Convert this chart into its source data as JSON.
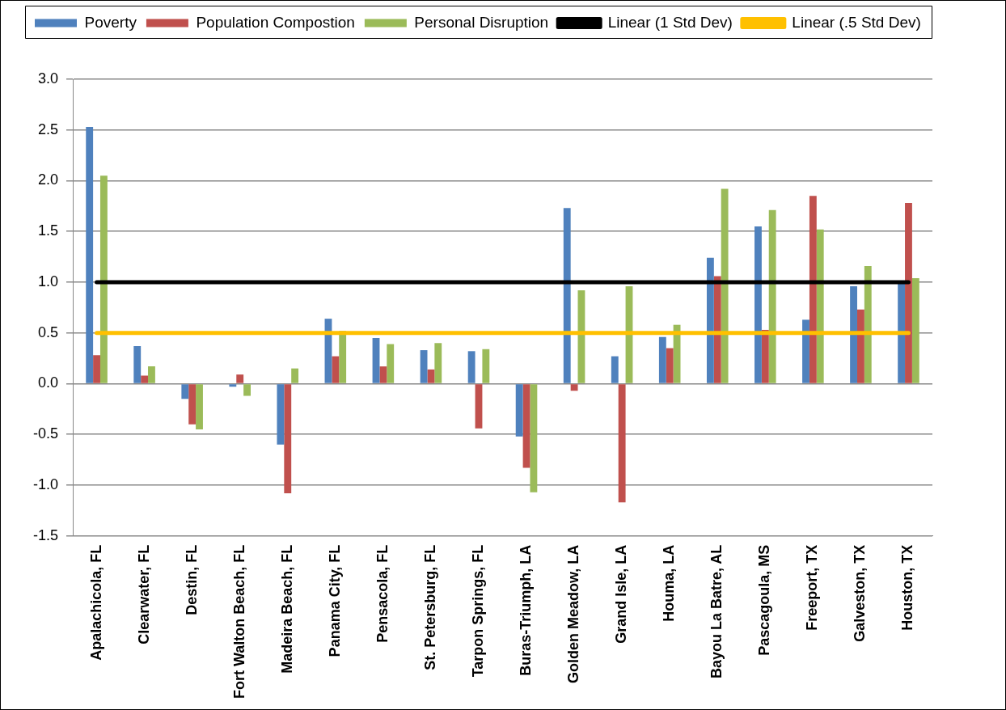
{
  "chart_data": {
    "type": "bar",
    "categories": [
      "Apalachicola, FL",
      "Clearwater, FL",
      "Destin, FL",
      "Fort Walton Beach, FL",
      "Madeira Beach, FL",
      "Panama City, FL",
      "Pensacola, FL",
      "St. Petersburg, FL",
      "Tarpon Springs, FL",
      "Buras-Triumph, LA",
      "Golden Meadow, LA",
      "Grand Isle, LA",
      "Houma, LA",
      "Bayou La Batre, AL",
      "Pascagoula, MS",
      "Freeport, TX",
      "Galveston, TX",
      "Houston, TX"
    ],
    "series": [
      {
        "name": "Poverty",
        "color": "#4f81bd",
        "values": [
          2.53,
          0.37,
          -0.15,
          -0.03,
          -0.6,
          0.64,
          0.45,
          0.33,
          0.32,
          -0.52,
          1.73,
          0.27,
          0.46,
          1.24,
          1.55,
          0.63,
          0.96,
          1.0
        ]
      },
      {
        "name": "Population Compostion",
        "color": "#c0504d",
        "values": [
          0.28,
          0.08,
          -0.4,
          0.09,
          -1.08,
          0.27,
          0.17,
          0.14,
          -0.44,
          -0.83,
          -0.07,
          -1.17,
          0.35,
          1.06,
          0.53,
          1.85,
          0.73,
          1.78
        ]
      },
      {
        "name": "Personal Disruption",
        "color": "#9bbb59",
        "values": [
          2.05,
          0.17,
          -0.45,
          -0.12,
          0.15,
          0.52,
          0.39,
          0.4,
          0.34,
          -1.07,
          0.92,
          0.96,
          0.58,
          1.92,
          1.71,
          1.52,
          1.16,
          1.04
        ]
      },
      {
        "name": "Linear (1 Std Dev)",
        "type": "line",
        "color": "#000000",
        "values": [
          1,
          1,
          1,
          1,
          1,
          1,
          1,
          1,
          1,
          1,
          1,
          1,
          1,
          1,
          1,
          1,
          1,
          1
        ]
      },
      {
        "name": "Linear (.5 Std Dev)",
        "type": "line",
        "color": "#ffc000",
        "values": [
          0.5,
          0.5,
          0.5,
          0.5,
          0.5,
          0.5,
          0.5,
          0.5,
          0.5,
          0.5,
          0.5,
          0.5,
          0.5,
          0.5,
          0.5,
          0.5,
          0.5,
          0.5
        ]
      }
    ],
    "ylim": [
      -1.5,
      3.0
    ],
    "yticks": [
      {
        "value": -1.5,
        "label": "-1.5"
      },
      {
        "value": -1.0,
        "label": "-1.0"
      },
      {
        "value": -0.5,
        "label": "-0.5"
      },
      {
        "value": 0,
        "label": "0.0"
      },
      {
        "value": 0.5,
        "label": "0.5"
      },
      {
        "value": 1.0,
        "label": "1.0"
      },
      {
        "value": 1.5,
        "label": "1.5"
      },
      {
        "value": 2.0,
        "label": "2.0"
      },
      {
        "value": 2.5,
        "label": "2.5"
      },
      {
        "value": 3.0,
        "label": "3.0"
      }
    ],
    "grid": "y",
    "legend": "top",
    "marker": "none"
  }
}
